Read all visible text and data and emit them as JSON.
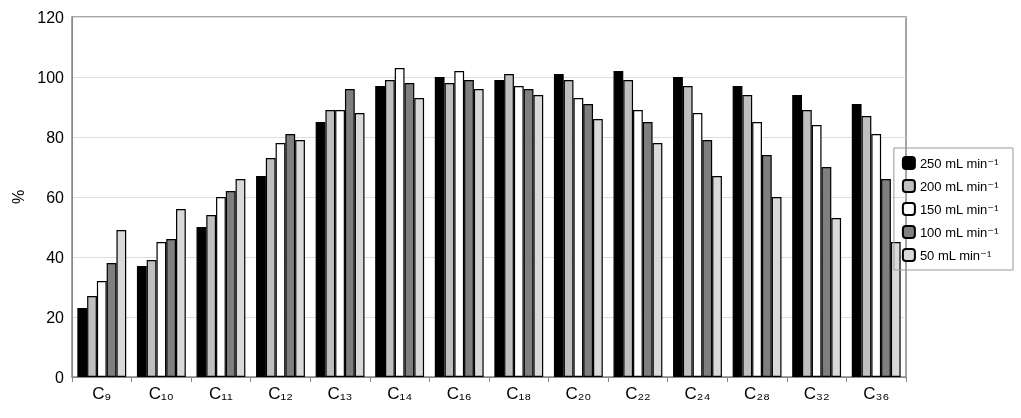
{
  "chart_data": {
    "type": "bar",
    "ylabel": "%",
    "categories": [
      "C₉",
      "C₁₀",
      "C₁₁",
      "C₁₂",
      "C₁₃",
      "C₁₄",
      "C₁₆",
      "C₁₈",
      "C₂₀",
      "C₂₂",
      "C₂₄",
      "C₂₈",
      "C₃₂",
      "C₃₆"
    ],
    "series": [
      {
        "name": "250 mL min⁻¹",
        "color": "#000000",
        "values": [
          23,
          37,
          50,
          67,
          85,
          97,
          100,
          99,
          101,
          102,
          100,
          97,
          94,
          91
        ]
      },
      {
        "name": "200 mL min⁻¹",
        "color": "#bfbfbf",
        "values": [
          27,
          39,
          54,
          73,
          89,
          99,
          98,
          101,
          99,
          99,
          97,
          94,
          89,
          87
        ]
      },
      {
        "name": "150 mL min⁻¹",
        "color": "#ffffff",
        "values": [
          32,
          45,
          60,
          78,
          89,
          103,
          102,
          97,
          93,
          89,
          88,
          85,
          84,
          81
        ]
      },
      {
        "name": "100 mL min⁻¹",
        "color": "#7f7f7f",
        "values": [
          38,
          46,
          62,
          81,
          96,
          98,
          99,
          96,
          91,
          85,
          79,
          74,
          70,
          66
        ]
      },
      {
        "name": "50 mL min⁻¹",
        "color": "#d9d9d9",
        "values": [
          49,
          56,
          66,
          79,
          88,
          93,
          96,
          94,
          86,
          78,
          67,
          60,
          53,
          45
        ]
      }
    ],
    "ylim": [
      0,
      120
    ],
    "yticks": [
      0,
      20,
      40,
      60,
      80,
      100,
      120
    ],
    "grid": "y",
    "legend": "right"
  }
}
